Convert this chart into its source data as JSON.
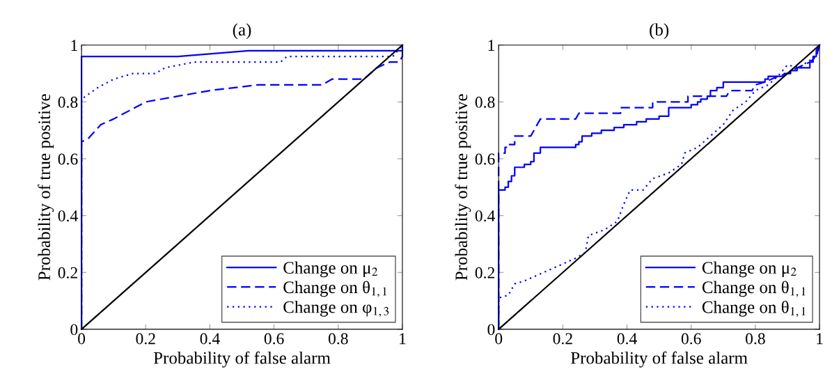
{
  "chart_data": [
    {
      "type": "line",
      "title": "(a)",
      "xlabel": "Probability of false alarm",
      "ylabel": "Probability of true positive",
      "xlim": [
        0,
        1
      ],
      "ylim": [
        0,
        1
      ],
      "xticks": [
        0,
        0.2,
        0.4,
        0.6,
        0.8,
        1
      ],
      "yticks": [
        0,
        0.2,
        0.4,
        0.6,
        0.8,
        1
      ],
      "grid": false,
      "legend": "bottom right",
      "marker": "none",
      "series": [
        {
          "name": "Change on μ$_{2}$",
          "color": "#0000ff",
          "line_style": "solid",
          "x": [
            0,
            0,
            0.3,
            0.52,
            1,
            1
          ],
          "values": [
            0,
            0.96,
            0.96,
            0.98,
            0.98,
            1
          ]
        },
        {
          "name": "Change on θ$_{1,1}$",
          "color": "#0000ff",
          "line_style": "dashed",
          "x": [
            0,
            0,
            0.02,
            0.06,
            0.1,
            0.15,
            0.2,
            0.3,
            0.4,
            0.55,
            0.75,
            0.78,
            0.88,
            0.92,
            0.96,
            0.99,
            1,
            1
          ],
          "values": [
            0,
            0.66,
            0.67,
            0.72,
            0.74,
            0.77,
            0.8,
            0.82,
            0.84,
            0.86,
            0.86,
            0.88,
            0.88,
            0.92,
            0.94,
            0.94,
            0.96,
            1
          ]
        },
        {
          "name": "Change on φ$_{1,3}$",
          "color": "#0000ff",
          "line_style": "dotted",
          "x": [
            0,
            0,
            0.05,
            0.1,
            0.16,
            0.23,
            0.26,
            0.35,
            0.62,
            0.64,
            0.97,
            1
          ],
          "values": [
            0,
            0.81,
            0.85,
            0.88,
            0.9,
            0.9,
            0.92,
            0.94,
            0.94,
            0.96,
            0.96,
            1
          ]
        },
        {
          "color": "#000000",
          "line_style": "solid",
          "x": [
            0,
            1
          ],
          "values": [
            0,
            1
          ]
        }
      ]
    },
    {
      "type": "line",
      "title": "(b)",
      "xlabel": "Probability of false alarm",
      "ylabel": "Probability of true positive",
      "xlim": [
        0,
        1
      ],
      "ylim": [
        0,
        1
      ],
      "xticks": [
        0,
        0.2,
        0.4,
        0.6,
        0.8,
        1
      ],
      "yticks": [
        0,
        0.2,
        0.4,
        0.6,
        0.8,
        1
      ],
      "grid": false,
      "legend": "bottom right",
      "marker": "none",
      "series": [
        {
          "name": "Change on μ$_{2}$",
          "color": "#0000ff",
          "line_style": "solid",
          "x": [
            0,
            0,
            0.02,
            0.02,
            0.03,
            0.03,
            0.04,
            0.04,
            0.05,
            0.05,
            0.08,
            0.08,
            0.1,
            0.1,
            0.11,
            0.11,
            0.13,
            0.13,
            0.24,
            0.24,
            0.25,
            0.25,
            0.26,
            0.26,
            0.29,
            0.29,
            0.32,
            0.32,
            0.36,
            0.36,
            0.39,
            0.39,
            0.43,
            0.43,
            0.46,
            0.46,
            0.5,
            0.5,
            0.53,
            0.53,
            0.6,
            0.6,
            0.62,
            0.62,
            0.63,
            0.63,
            0.65,
            0.65,
            0.66,
            0.66,
            0.68,
            0.68,
            0.7,
            0.7,
            0.83,
            0.83,
            0.84,
            0.84,
            0.89,
            0.89,
            0.91,
            0.91,
            0.93,
            0.93,
            0.97,
            0.97,
            0.98,
            0.98,
            0.99,
            0.99,
            1
          ],
          "values": [
            0,
            0.49,
            0.49,
            0.5,
            0.5,
            0.52,
            0.52,
            0.54,
            0.54,
            0.57,
            0.57,
            0.58,
            0.58,
            0.59,
            0.59,
            0.62,
            0.62,
            0.64,
            0.64,
            0.65,
            0.65,
            0.66,
            0.66,
            0.68,
            0.68,
            0.69,
            0.69,
            0.7,
            0.7,
            0.71,
            0.71,
            0.72,
            0.72,
            0.73,
            0.73,
            0.74,
            0.74,
            0.75,
            0.75,
            0.78,
            0.78,
            0.79,
            0.79,
            0.8,
            0.8,
            0.81,
            0.81,
            0.82,
            0.82,
            0.84,
            0.84,
            0.85,
            0.85,
            0.87,
            0.87,
            0.88,
            0.88,
            0.89,
            0.89,
            0.9,
            0.9,
            0.91,
            0.91,
            0.92,
            0.92,
            0.94,
            0.94,
            0.96,
            0.96,
            0.98,
            1
          ]
        },
        {
          "name": "Change on θ$_{1,1}$",
          "color": "#0000ff",
          "line_style": "dashed",
          "x": [
            0,
            0,
            0.02,
            0.02,
            0.03,
            0.03,
            0.05,
            0.05,
            0.1,
            0.13,
            0.24,
            0.25,
            0.38,
            0.38,
            0.48,
            0.48,
            0.59,
            0.59,
            0.71,
            0.72,
            0.79,
            0.8,
            0.83,
            0.85,
            0.87,
            0.9,
            0.93,
            0.95,
            0.97,
            0.99,
            1
          ],
          "values": [
            0,
            0.62,
            0.62,
            0.64,
            0.64,
            0.65,
            0.65,
            0.68,
            0.68,
            0.74,
            0.74,
            0.76,
            0.76,
            0.78,
            0.78,
            0.8,
            0.8,
            0.82,
            0.82,
            0.84,
            0.84,
            0.86,
            0.87,
            0.88,
            0.89,
            0.9,
            0.92,
            0.93,
            0.94,
            0.96,
            1
          ]
        },
        {
          "name": "Change on θ$_{1,1}$",
          "color": "#0000ff",
          "line_style": "dotted",
          "x": [
            0,
            0,
            0.03,
            0.05,
            0.08,
            0.12,
            0.16,
            0.2,
            0.24,
            0.27,
            0.28,
            0.33,
            0.37,
            0.39,
            0.41,
            0.45,
            0.48,
            0.53,
            0.57,
            0.58,
            0.62,
            0.66,
            0.7,
            0.73,
            0.77,
            0.8,
            0.84,
            0.87,
            0.9,
            0.94,
            0.96,
            0.99,
            1
          ],
          "values": [
            0,
            0.11,
            0.12,
            0.16,
            0.17,
            0.19,
            0.21,
            0.23,
            0.25,
            0.27,
            0.33,
            0.35,
            0.38,
            0.44,
            0.49,
            0.49,
            0.53,
            0.55,
            0.58,
            0.62,
            0.64,
            0.68,
            0.72,
            0.77,
            0.8,
            0.84,
            0.86,
            0.89,
            0.93,
            0.92,
            0.94,
            0.96,
            1
          ]
        },
        {
          "color": "#000000",
          "line_style": "solid",
          "x": [
            0,
            1
          ],
          "values": [
            0,
            1
          ]
        }
      ]
    }
  ]
}
